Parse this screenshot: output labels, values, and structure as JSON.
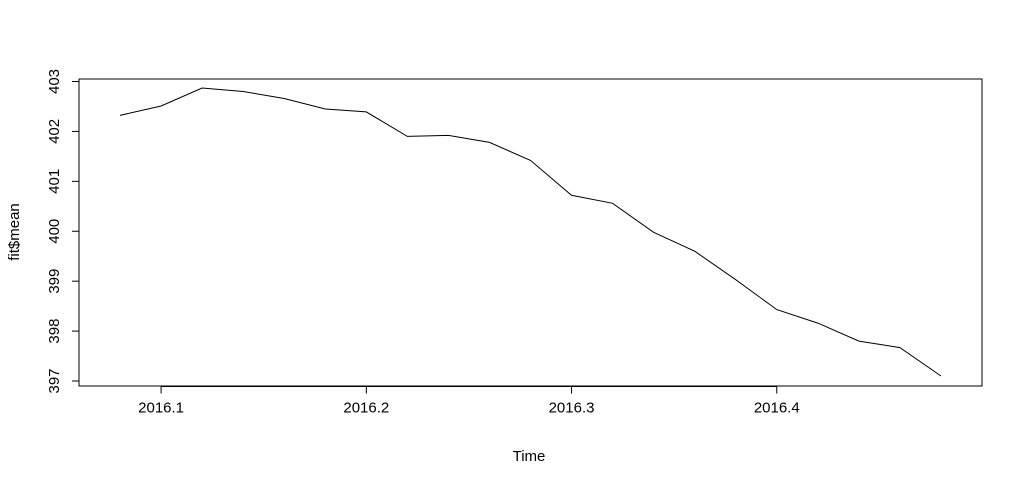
{
  "chart_data": {
    "type": "line",
    "title": "",
    "xlabel": "Time",
    "ylabel": "fit$mean",
    "xlim": [
      2016.06,
      2016.5
    ],
    "ylim": [
      396.9,
      403.05
    ],
    "x_ticks": [
      2016.1,
      2016.2,
      2016.3,
      2016.4
    ],
    "x_tick_labels": [
      "2016.1",
      "2016.2",
      "2016.3",
      "2016.4"
    ],
    "y_ticks": [
      397,
      398,
      399,
      400,
      401,
      402,
      403
    ],
    "y_tick_labels": [
      "397",
      "398",
      "399",
      "400",
      "401",
      "402",
      "403"
    ],
    "grid": false,
    "line_color": "#000000",
    "series": [
      {
        "x": [
          2016.08,
          2016.1,
          2016.12,
          2016.14,
          2016.16,
          2016.18,
          2016.2,
          2016.22,
          2016.24,
          2016.26,
          2016.28,
          2016.3,
          2016.32,
          2016.34,
          2016.36,
          2016.38,
          2016.4,
          2016.42,
          2016.44,
          2016.46,
          2016.48
        ],
        "values": [
          402.32,
          402.51,
          402.87,
          402.8,
          402.66,
          402.45,
          402.39,
          401.9,
          401.92,
          401.78,
          401.42,
          400.72,
          400.56,
          399.98,
          399.6,
          399.03,
          398.43,
          398.16,
          397.8,
          397.67,
          397.1
        ]
      }
    ]
  }
}
